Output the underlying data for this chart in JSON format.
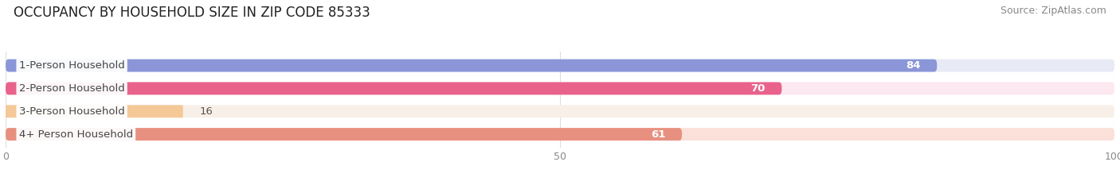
{
  "title": "OCCUPANCY BY HOUSEHOLD SIZE IN ZIP CODE 85333",
  "source": "Source: ZipAtlas.com",
  "categories": [
    "1-Person Household",
    "2-Person Household",
    "3-Person Household",
    "4+ Person Household"
  ],
  "values": [
    84,
    70,
    16,
    61
  ],
  "bar_colors": [
    "#8b96d8",
    "#e8628c",
    "#f5c898",
    "#e89080"
  ],
  "bar_bg_colors": [
    "#e8eaf5",
    "#fce8f0",
    "#f8f0e8",
    "#fae0d8"
  ],
  "xlim": [
    0,
    100
  ],
  "xticks": [
    0,
    50,
    100
  ],
  "label_color": "#444444",
  "title_fontsize": 12,
  "source_fontsize": 9,
  "bar_label_fontsize": 9.5,
  "value_fontsize": 9.5,
  "tick_fontsize": 9,
  "background_color": "#ffffff",
  "grid_color": "#dddddd",
  "value_label_color_dark": "#555555"
}
